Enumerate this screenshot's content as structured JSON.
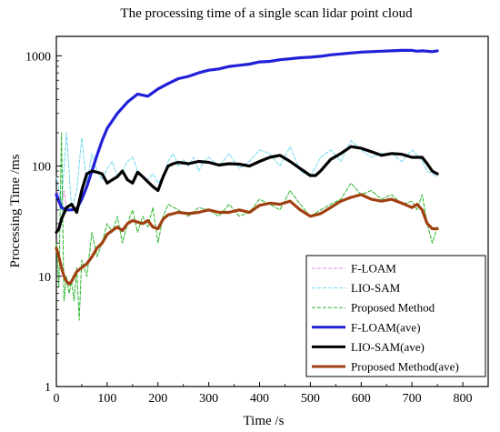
{
  "chart_data": {
    "type": "line",
    "title": "The processing time of a single scan lidar point cloud",
    "xlabel": "Time /s",
    "ylabel": "Processing Time /ms",
    "xlim": [
      0,
      850
    ],
    "ylim": [
      1,
      1500
    ],
    "y_scale": "log",
    "x_ticks": [
      0,
      100,
      200,
      300,
      400,
      500,
      600,
      700,
      800
    ],
    "y_ticks": [
      1,
      10,
      100,
      1000
    ],
    "grid": false,
    "legend_position": "bottom-right",
    "legend": [
      "F-LOAM",
      "LIO-SAM",
      "Proposed Method",
      "F-LOAM(ave)",
      "LIO-SAM(ave)",
      "Proposed Method(ave)"
    ],
    "series": [
      {
        "name": "F-LOAM",
        "style": "dashed",
        "color": "#e08ad0",
        "x": [
          0,
          5,
          10,
          15,
          20
        ],
        "y": [
          60,
          55,
          45,
          60,
          40
        ]
      },
      {
        "name": "LIO-SAM",
        "style": "dashed",
        "color": "#6fd8ee",
        "x": [
          0,
          5,
          10,
          20,
          30,
          40,
          50,
          60,
          70,
          80,
          90,
          100,
          110,
          120,
          130,
          140,
          150,
          160,
          170,
          180,
          190,
          200,
          210,
          220,
          230,
          240,
          250,
          260,
          270,
          280,
          290,
          300,
          320,
          340,
          360,
          380,
          400,
          420,
          440,
          460,
          480,
          500,
          520,
          540,
          560,
          580,
          600,
          620,
          640,
          660,
          680,
          700,
          710,
          720,
          730,
          740,
          750
        ],
        "y": [
          80,
          60,
          45,
          200,
          40,
          60,
          180,
          70,
          130,
          90,
          75,
          95,
          110,
          80,
          90,
          110,
          120,
          90,
          80,
          75,
          85,
          70,
          80,
          110,
          130,
          100,
          115,
          100,
          120,
          90,
          110,
          120,
          100,
          130,
          95,
          110,
          140,
          130,
          100,
          150,
          90,
          80,
          120,
          140,
          110,
          170,
          140,
          120,
          130,
          130,
          110,
          140,
          125,
          110,
          90,
          85,
          80
        ]
      },
      {
        "name": "Proposed Method",
        "style": "dashed",
        "color": "#2ab52a",
        "x": [
          0,
          5,
          10,
          15,
          20,
          25,
          30,
          35,
          40,
          45,
          50,
          60,
          70,
          80,
          90,
          100,
          110,
          120,
          130,
          140,
          150,
          160,
          170,
          180,
          190,
          200,
          210,
          220,
          240,
          260,
          280,
          300,
          320,
          340,
          360,
          380,
          400,
          420,
          440,
          460,
          480,
          500,
          520,
          540,
          560,
          580,
          600,
          620,
          640,
          660,
          680,
          700,
          710,
          720,
          730,
          740,
          750
        ],
        "y": [
          20,
          8,
          200,
          6,
          10,
          7,
          9,
          6,
          12,
          4,
          14,
          10,
          25,
          15,
          20,
          30,
          25,
          35,
          20,
          30,
          40,
          25,
          35,
          28,
          42,
          20,
          35,
          45,
          40,
          35,
          42,
          40,
          35,
          45,
          35,
          38,
          50,
          45,
          40,
          60,
          45,
          35,
          40,
          45,
          50,
          70,
          55,
          60,
          50,
          55,
          45,
          48,
          40,
          55,
          30,
          20,
          28
        ]
      },
      {
        "name": "F-LOAM(ave)",
        "style": "solid",
        "color": "#2020d8",
        "x": [
          0,
          10,
          20,
          30,
          40,
          50,
          60,
          70,
          80,
          90,
          100,
          120,
          140,
          160,
          180,
          200,
          220,
          240,
          260,
          280,
          300,
          320,
          340,
          360,
          380,
          400,
          420,
          440,
          460,
          480,
          500,
          520,
          540,
          560,
          580,
          600,
          620,
          640,
          660,
          680,
          700,
          710,
          720,
          730,
          740,
          750
        ],
        "y": [
          55,
          42,
          40,
          40,
          41,
          50,
          65,
          90,
          125,
          170,
          220,
          300,
          380,
          450,
          430,
          500,
          560,
          620,
          650,
          700,
          740,
          760,
          800,
          820,
          840,
          880,
          890,
          920,
          940,
          960,
          970,
          990,
          1020,
          1040,
          1060,
          1080,
          1090,
          1100,
          1110,
          1120,
          1120,
          1100,
          1110,
          1100,
          1090,
          1110
        ]
      },
      {
        "name": "LIO-SAM(ave)",
        "style": "solid",
        "color": "#000000",
        "x": [
          0,
          5,
          10,
          20,
          30,
          40,
          50,
          60,
          70,
          80,
          90,
          100,
          110,
          120,
          130,
          140,
          150,
          160,
          170,
          180,
          190,
          200,
          210,
          220,
          230,
          240,
          260,
          280,
          300,
          320,
          340,
          360,
          380,
          400,
          420,
          440,
          460,
          480,
          500,
          510,
          520,
          540,
          560,
          580,
          600,
          620,
          640,
          660,
          680,
          700,
          720,
          730,
          740,
          750
        ],
        "y": [
          25,
          27,
          33,
          42,
          45,
          38,
          60,
          85,
          90,
          88,
          85,
          70,
          75,
          80,
          90,
          75,
          70,
          88,
          80,
          72,
          65,
          60,
          80,
          100,
          105,
          108,
          105,
          110,
          108,
          102,
          105,
          104,
          100,
          110,
          120,
          125,
          110,
          95,
          82,
          82,
          90,
          115,
          130,
          150,
          145,
          135,
          125,
          130,
          128,
          120,
          120,
          105,
          90,
          85
        ]
      },
      {
        "name": "Proposed Method(ave)",
        "style": "solid",
        "color": "#a04010",
        "x": [
          0,
          5,
          10,
          15,
          20,
          25,
          30,
          35,
          40,
          45,
          50,
          60,
          70,
          80,
          90,
          100,
          110,
          120,
          130,
          140,
          150,
          160,
          170,
          180,
          190,
          200,
          210,
          220,
          240,
          260,
          280,
          300,
          320,
          340,
          360,
          380,
          400,
          420,
          440,
          460,
          480,
          500,
          520,
          540,
          560,
          580,
          600,
          620,
          640,
          660,
          680,
          700,
          710,
          720,
          730,
          740,
          750
        ],
        "y": [
          18,
          15,
          12,
          10,
          9,
          8.5,
          9,
          10,
          11,
          11.5,
          12,
          13,
          15,
          18,
          20,
          24,
          26,
          28,
          26,
          30,
          32,
          31,
          30,
          32,
          28,
          27,
          33,
          36,
          38,
          37,
          38,
          40,
          38,
          38,
          40,
          38,
          44,
          46,
          45,
          48,
          40,
          35,
          37,
          42,
          48,
          52,
          55,
          50,
          48,
          50,
          46,
          42,
          45,
          40,
          30,
          27,
          27
        ]
      }
    ]
  }
}
